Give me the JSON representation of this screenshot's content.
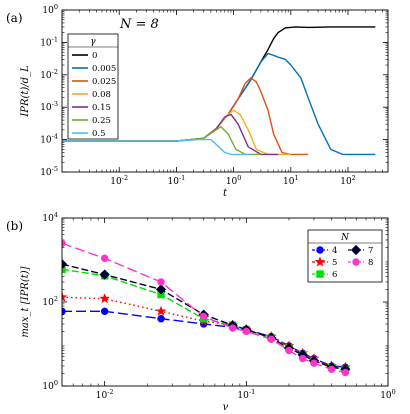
{
  "chart_data": [
    {
      "type": "line",
      "panel_label": "(a)",
      "annotation": "N = 8",
      "xlabel": "t",
      "ylabel": "IPR(t)/d_L",
      "xscale": "log",
      "yscale": "log",
      "xlim": [
        0.001,
        500
      ],
      "ylim": [
        1e-05,
        1
      ],
      "xticks": [
        0.01,
        0.1,
        1,
        10,
        100
      ],
      "xtick_labels": [
        "10",
        "10",
        "10",
        "10",
        "10"
      ],
      "xtick_exps": [
        "-2",
        "-1",
        "0",
        "1",
        "2"
      ],
      "yticks": [
        1e-05,
        0.0001,
        0.001,
        0.01,
        0.1,
        1
      ],
      "ytick_labels": [
        "10",
        "10",
        "10",
        "10",
        "10",
        "10"
      ],
      "ytick_exps": [
        "-5",
        "-4",
        "-3",
        "-2",
        "-1",
        "0"
      ],
      "legend": {
        "title": "γ",
        "placement": "left"
      },
      "series": [
        {
          "name": "0",
          "color": "#000000",
          "x": [
            0.001,
            0.1,
            0.3,
            0.5,
            0.8,
            1.2,
            2,
            3,
            4,
            5,
            6,
            8,
            12,
            20,
            50,
            100,
            200,
            300
          ],
          "y": [
            9e-05,
            9e-05,
            0.00011,
            0.00022,
            0.0006,
            0.0018,
            0.007,
            0.025,
            0.06,
            0.13,
            0.2,
            0.28,
            0.3,
            0.29,
            0.3,
            0.3,
            0.3,
            0.3
          ]
        },
        {
          "name": "0.005",
          "color": "#0072BD",
          "x": [
            0.001,
            0.1,
            0.3,
            0.5,
            0.8,
            1.2,
            2,
            3,
            4,
            5,
            6,
            8,
            10,
            15,
            20,
            30,
            50,
            80,
            100,
            200,
            300
          ],
          "y": [
            9e-05,
            9e-05,
            0.00011,
            0.00022,
            0.0006,
            0.0018,
            0.007,
            0.025,
            0.045,
            0.04,
            0.035,
            0.03,
            0.02,
            0.008,
            0.002,
            0.0003,
            5e-05,
            3.5e-05,
            3.5e-05,
            3.5e-05,
            3.5e-05
          ]
        },
        {
          "name": "0.025",
          "color": "#D95319",
          "x": [
            0.001,
            0.1,
            0.3,
            0.5,
            0.8,
            1.2,
            1.6,
            2,
            2.5,
            3,
            4,
            5,
            7,
            10,
            20
          ],
          "y": [
            9e-05,
            9e-05,
            0.00011,
            0.00022,
            0.0006,
            0.0018,
            0.0055,
            0.008,
            0.006,
            0.003,
            0.0008,
            0.00015,
            4e-05,
            3.5e-05,
            3.5e-05
          ]
        },
        {
          "name": "0.08",
          "color": "#EDB120",
          "x": [
            0.001,
            0.1,
            0.3,
            0.5,
            0.8,
            1.0,
            1.3,
            1.8,
            2.5,
            4,
            10
          ],
          "y": [
            9e-05,
            9e-05,
            0.00011,
            0.00022,
            0.0006,
            0.0008,
            0.0006,
            0.0002,
            5e-05,
            3.5e-05,
            3.5e-05
          ]
        },
        {
          "name": "0.15",
          "color": "#7E2F8E",
          "x": [
            0.001,
            0.1,
            0.3,
            0.5,
            0.7,
            0.9,
            1.2,
            1.8,
            3,
            6
          ],
          "y": [
            9e-05,
            9e-05,
            0.00011,
            0.00022,
            0.0005,
            0.0006,
            0.0003,
            6e-05,
            3.5e-05,
            3.5e-05
          ]
        },
        {
          "name": "0.25",
          "color": "#77AC30",
          "x": [
            0.001,
            0.1,
            0.3,
            0.45,
            0.6,
            0.8,
            1.1,
            1.6,
            3
          ],
          "y": [
            9e-05,
            9e-05,
            0.00011,
            0.00018,
            0.00025,
            0.00015,
            5e-05,
            3.5e-05,
            3.5e-05
          ]
        },
        {
          "name": "0.5",
          "color": "#4DBEEE",
          "x": [
            0.001,
            0.1,
            0.25,
            0.4,
            0.55,
            0.7,
            0.9,
            1.3,
            2
          ],
          "y": [
            9e-05,
            9e-05,
            0.0001,
            0.0001,
            6e-05,
            4e-05,
            3.5e-05,
            3.5e-05,
            3.5e-05
          ]
        }
      ]
    },
    {
      "type": "line",
      "panel_label": "(b)",
      "xlabel": "γ",
      "ylabel": "max_t [IPR(t)]",
      "xscale": "log",
      "yscale": "log",
      "xlim": [
        0.005,
        1
      ],
      "ylim": [
        1,
        10000
      ],
      "xticks": [
        0.01,
        0.1,
        1
      ],
      "xtick_labels": [
        "10",
        "10",
        "10"
      ],
      "xtick_exps": [
        "-2",
        "-1",
        "0"
      ],
      "yticks": [
        1,
        100,
        10000
      ],
      "ytick_labels": [
        "10",
        "10",
        "10"
      ],
      "ytick_exps": [
        "0",
        "2",
        "4"
      ],
      "legend": {
        "title": "N",
        "placement": "top-right"
      },
      "series": [
        {
          "name": "4",
          "color": "#0000FF",
          "marker": "circle",
          "dash": "10,4",
          "x": [
            0.005,
            0.01,
            0.025,
            0.05,
            0.08,
            0.1,
            0.15,
            0.2,
            0.25,
            0.3,
            0.4,
            0.5
          ],
          "y": [
            60,
            60,
            40,
            30,
            25,
            22,
            15,
            9,
            6,
            4.5,
            3,
            2.8
          ]
        },
        {
          "name": "5",
          "color": "#FF0000",
          "marker": "star",
          "dash": "1.5,3",
          "x": [
            0.005,
            0.01,
            0.025,
            0.05,
            0.08,
            0.1,
            0.15,
            0.2,
            0.25,
            0.3,
            0.4,
            0.5
          ],
          "y": [
            130,
            120,
            60,
            35,
            28,
            22,
            15,
            9,
            6,
            4.5,
            3,
            2.8
          ]
        },
        {
          "name": "6",
          "color": "#00DD00",
          "marker": "square",
          "dash": "7,3",
          "x": [
            0.005,
            0.01,
            0.025,
            0.05,
            0.08,
            0.1,
            0.15,
            0.2,
            0.25,
            0.3,
            0.4,
            0.5
          ],
          "y": [
            600,
            420,
            150,
            40,
            28,
            22,
            14,
            8,
            5.5,
            4,
            2.8,
            2.5
          ]
        },
        {
          "name": "7",
          "color": "#000033",
          "marker": "diamond",
          "dash": "7,3",
          "x": [
            0.005,
            0.01,
            0.025,
            0.05,
            0.08,
            0.1,
            0.15,
            0.2,
            0.25,
            0.3,
            0.4,
            0.5
          ],
          "y": [
            800,
            450,
            200,
            50,
            28,
            22,
            14,
            8,
            5.5,
            4,
            2.8,
            2.5
          ]
        },
        {
          "name": "8",
          "color": "#FF33CC",
          "marker": "circle",
          "dash": "10,4",
          "x": [
            0.005,
            0.01,
            0.025,
            0.05,
            0.08,
            0.1,
            0.15,
            0.2,
            0.25,
            0.3,
            0.4,
            0.5
          ],
          "y": [
            2500,
            1100,
            300,
            45,
            24,
            20,
            13,
            7,
            4.5,
            3.5,
            2.5,
            2.1
          ]
        }
      ]
    }
  ]
}
